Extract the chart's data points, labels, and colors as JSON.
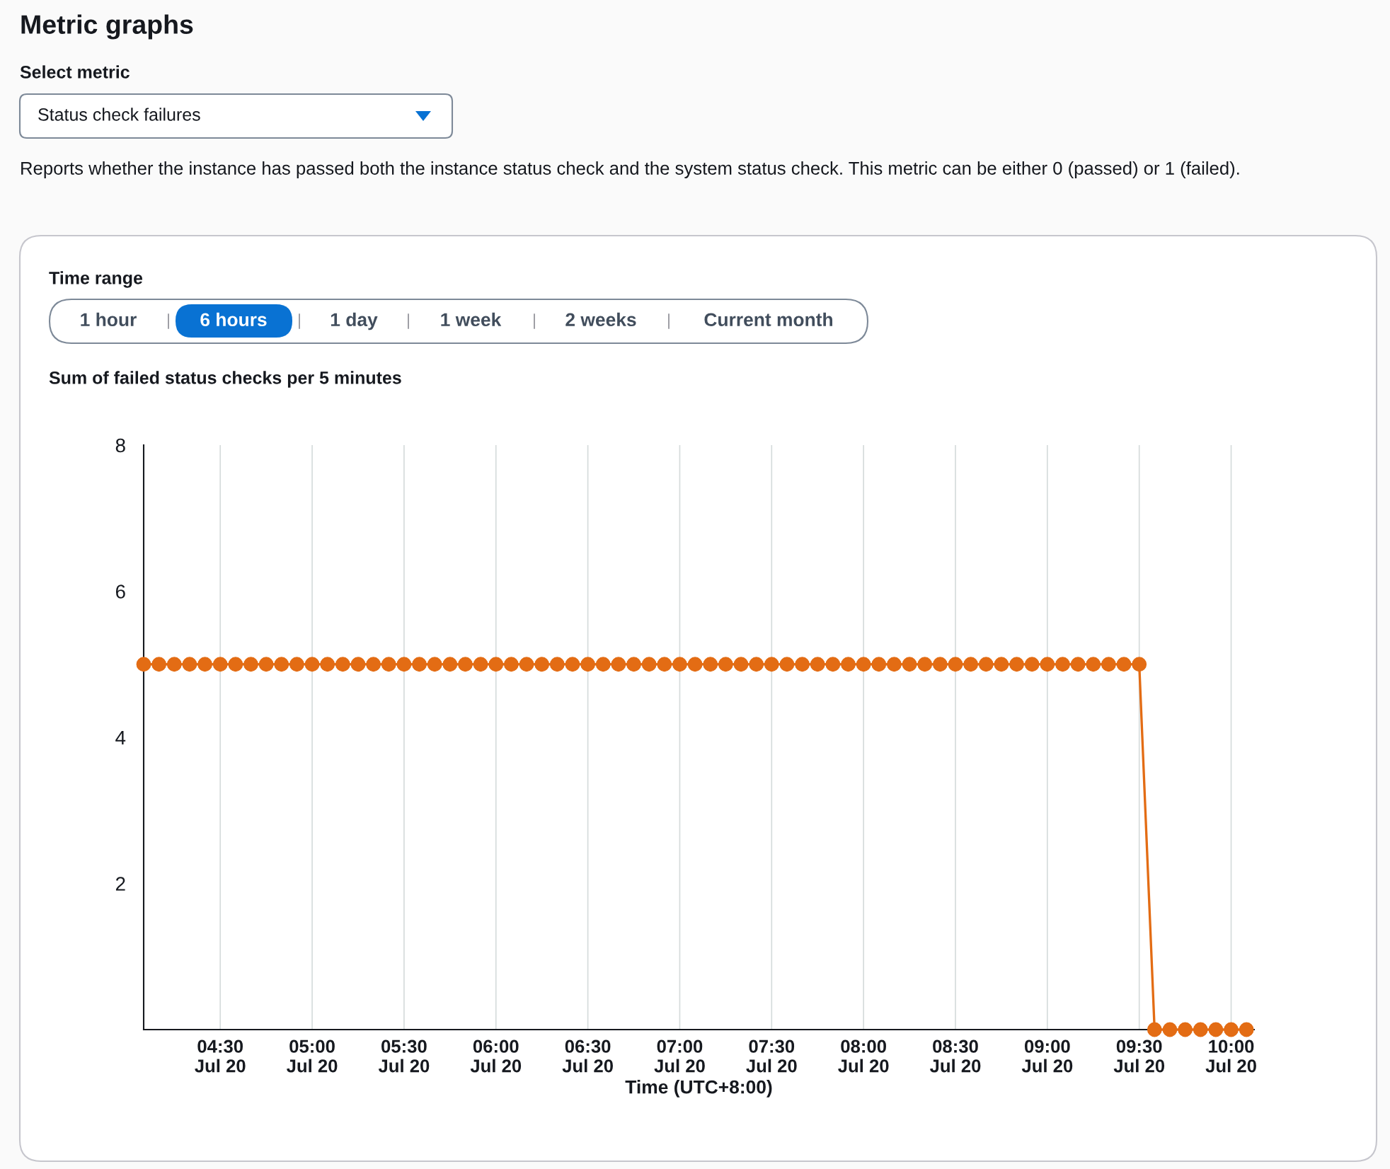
{
  "chart_data": {
    "type": "line",
    "title": "Sum of failed status checks per 5 minutes",
    "xlabel": "Time (UTC+8:00)",
    "annotations": [
      "Metric graphs",
      "Select metric",
      "Status check failures",
      "Reports whether the instance has passed both the instance status check and the system status check. This metric can be either 0 (passed) or 1 (failed).",
      "Time range",
      "1 hour",
      "6 hours",
      "1 day",
      "1 week",
      "2 weeks",
      "Current month"
    ],
    "categories": [
      null,
      null,
      null,
      null,
      null,
      "04:30\nJul 20",
      null,
      null,
      null,
      null,
      null,
      "05:00\nJul 20",
      null,
      null,
      null,
      null,
      null,
      "05:30\nJul 20",
      null,
      null,
      null,
      null,
      null,
      "06:00\nJul 20",
      null,
      null,
      null,
      null,
      null,
      "06:30\nJul 20",
      null,
      null,
      null,
      null,
      null,
      "07:00\nJul 20",
      null,
      null,
      null,
      null,
      null,
      "07:30\nJul 20",
      null,
      null,
      null,
      null,
      null,
      "08:00\nJul 20",
      null,
      null,
      null,
      null,
      null,
      "08:30\nJul 20",
      null,
      null,
      null,
      null,
      null,
      "09:00\nJul 20",
      null,
      null,
      null,
      null,
      null,
      "09:30\nJul 20",
      null,
      null,
      null,
      null,
      null,
      "10:00\nJul 20",
      null
    ],
    "series": [
      {
        "color": "#e36c14",
        "values": [
          5,
          5,
          5,
          5,
          5,
          5,
          5,
          5,
          5,
          5,
          5,
          5,
          5,
          5,
          5,
          5,
          5,
          5,
          5,
          5,
          5,
          5,
          5,
          5,
          5,
          5,
          5,
          5,
          5,
          5,
          5,
          5,
          5,
          5,
          5,
          5,
          5,
          5,
          5,
          5,
          5,
          5,
          5,
          5,
          5,
          5,
          5,
          5,
          5,
          5,
          5,
          5,
          5,
          5,
          5,
          5,
          5,
          5,
          5,
          5,
          5,
          5,
          5,
          5,
          5,
          5,
          0,
          0,
          0,
          0,
          0,
          0,
          0
        ]
      }
    ],
    "ylim": [
      0,
      8
    ],
    "yticks": [
      2,
      4,
      6,
      8
    ],
    "grid": "x",
    "marker": "circle",
    "line_style": "solid"
  }
}
